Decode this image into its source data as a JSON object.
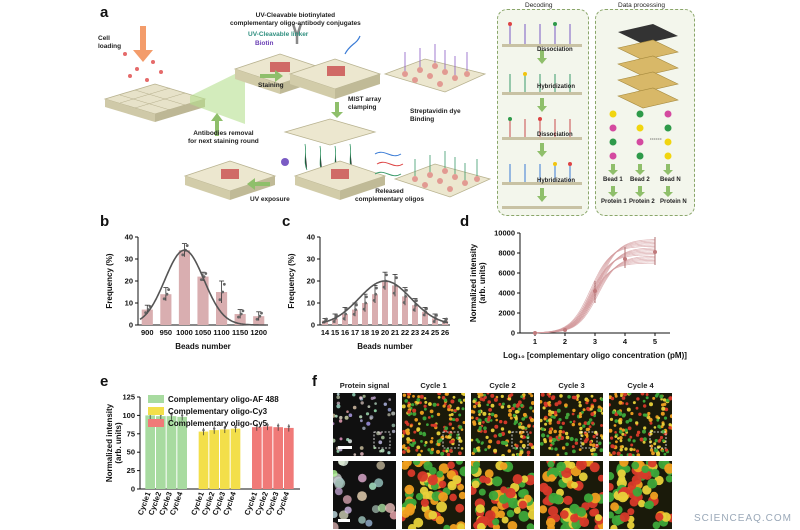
{
  "panels": {
    "a": "a",
    "b": "b",
    "c": "c",
    "d": "d",
    "e": "e",
    "f": "f"
  },
  "schematic": {
    "cell_loading": "Cell\nloading",
    "conjugates": "UV-Cleavable biotinylated\ncomplementary oligo-antibody conjugates",
    "uv_linker": "UV-Cleavable linker",
    "biotin": "Biotin",
    "staining": "Staining",
    "mist_clamping": "MIST array\nclamping",
    "streptavidin": "Streptavidin dye\nBinding",
    "antibodies_removal": "Antibodies removal\nfor next staining round",
    "uv_exposure": "UV exposure",
    "released": "Released\ncomplementary oligos",
    "decoding_title": "Decoding",
    "dissociation1": "Dissociation",
    "hybridization1": "Hybridization",
    "dissociation2": "Dissociation",
    "hybridization2": "Hybridization",
    "data_title": "Data processing",
    "bead1": "Bead 1",
    "bead2": "Bead 2",
    "beadN": "Bead N",
    "protein1": "Protein 1",
    "protein2": "Protein 2",
    "proteinN": "Protein N",
    "dots_sep": "······"
  },
  "chart_data": [
    {
      "id": "b",
      "type": "bar",
      "categories": [
        "900",
        "950",
        "1000",
        "1050",
        "1100",
        "1150",
        "1200"
      ],
      "values": [
        7,
        14,
        34,
        22,
        15,
        5,
        4
      ],
      "errors": [
        2,
        3,
        3,
        2,
        5,
        2,
        2
      ],
      "fit_curve": "gaussian",
      "xlabel": "Beads number",
      "ylabel": "Frequency (%)",
      "yticks": [
        "0",
        "10",
        "20",
        "30",
        "40"
      ],
      "ylim": [
        0,
        40
      ],
      "color": "#d9aeb0"
    },
    {
      "id": "c",
      "type": "bar",
      "categories": [
        "14",
        "15",
        "16",
        "17",
        "18",
        "19",
        "20",
        "21",
        "22",
        "23",
        "24",
        "25",
        "26"
      ],
      "values": [
        2,
        3,
        5,
        7,
        10,
        14,
        20,
        18,
        13,
        9,
        6,
        3,
        2
      ],
      "errors": [
        1,
        2,
        3,
        3,
        4,
        4,
        4,
        5,
        4,
        3,
        2,
        2,
        1
      ],
      "fit_curve": "gaussian",
      "xlabel": "Beads number",
      "ylabel": "Frequency (%)",
      "yticks": [
        "0",
        "10",
        "20",
        "30",
        "40"
      ],
      "ylim": [
        0,
        40
      ],
      "color": "#d9aeb0"
    },
    {
      "id": "d",
      "type": "line",
      "x": [
        1,
        2,
        3,
        4,
        5
      ],
      "y": [
        0,
        300,
        4200,
        7400,
        8100
      ],
      "band_low": [
        0,
        150,
        3000,
        6500,
        6800
      ],
      "band_high": [
        50,
        500,
        5200,
        8600,
        9600
      ],
      "xlabel": "Log₁₀ [complementary oligo concentration (pM)]",
      "ylabel": "Normalized intensity\n(arb. units)",
      "yticks": [
        "0",
        "2000",
        "4000",
        "6000",
        "8000",
        "10000"
      ],
      "xticks": [
        "1",
        "2",
        "3",
        "4",
        "5"
      ],
      "ylim": [
        0,
        10000
      ],
      "color": "#d39a9c"
    },
    {
      "id": "e",
      "type": "bar",
      "groups": [
        {
          "name": "Complementary oligo-AF 488",
          "color": "#a8dba0",
          "values": [
            100,
            99,
            99,
            98
          ]
        },
        {
          "name": "Complementary oligo-Cy3",
          "color": "#f3df4a",
          "values": [
            78,
            80,
            81,
            82
          ]
        },
        {
          "name": "Complementary oligo-Cy5",
          "color": "#f07a78",
          "values": [
            84,
            85,
            84,
            83
          ]
        }
      ],
      "categories": [
        "Cycle1",
        "Cycle2",
        "Cycle3",
        "Cycle4"
      ],
      "ylabel": "Normalized intensity\n(arb. units)",
      "yticks": [
        "0",
        "25",
        "50",
        "75",
        "100",
        "125"
      ],
      "ylim": [
        0,
        125
      ]
    }
  ],
  "micrographs": {
    "labels": [
      "Protein signal",
      "Cycle 1",
      "Cycle 2",
      "Cycle 3",
      "Cycle 4"
    ]
  },
  "watermark": "SCIENCEAQ.COM"
}
